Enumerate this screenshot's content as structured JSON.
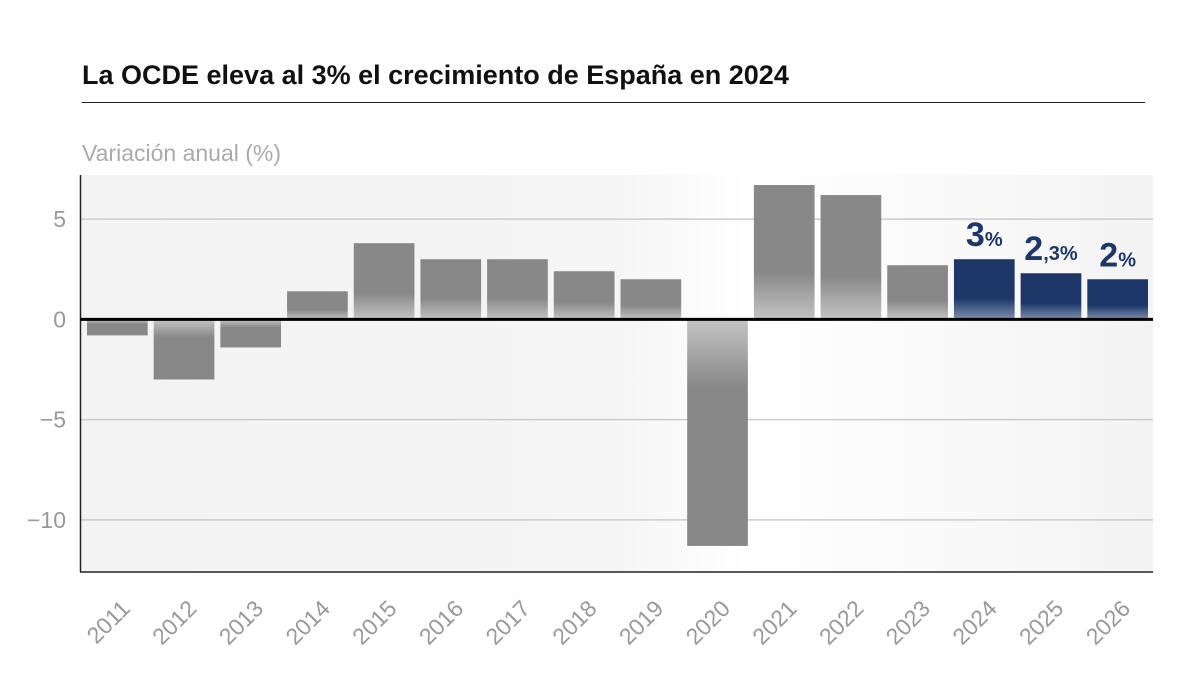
{
  "title": "La OCDE eleva al 3% el crecimiento de España en 2024",
  "subtitle": "Variación anual (%)",
  "chart_data": {
    "type": "bar",
    "title": "La OCDE eleva al 3% el crecimiento de España en 2024",
    "ylabel": "Variación anual (%)",
    "xlabel": "",
    "categories": [
      "2011",
      "2012",
      "2013",
      "2014",
      "2015",
      "2016",
      "2017",
      "2018",
      "2019",
      "2020",
      "2021",
      "2022",
      "2023",
      "2024",
      "2025",
      "2026"
    ],
    "values": [
      -0.8,
      -3.0,
      -1.4,
      1.4,
      3.8,
      3.0,
      3.0,
      2.4,
      2.0,
      -11.3,
      6.7,
      6.2,
      2.7,
      3.0,
      2.3,
      2.0
    ],
    "highlighted": [
      "2024",
      "2025",
      "2026"
    ],
    "data_labels": {
      "2024": {
        "main": "3",
        "unit": "%"
      },
      "2025": {
        "main": "2",
        "unit": ",3%"
      },
      "2026": {
        "main": "2",
        "unit": "%"
      }
    },
    "yticks": [
      5,
      0,
      -5,
      -10
    ],
    "ytick_labels": [
      "5",
      "0",
      "−5",
      "−10"
    ],
    "ylim": [
      -12.6,
      7.2
    ],
    "grid": true,
    "colors": {
      "bar": "#888888",
      "highlight": "#1c3768",
      "grid": "#cccccc",
      "tick": "#999999"
    }
  }
}
